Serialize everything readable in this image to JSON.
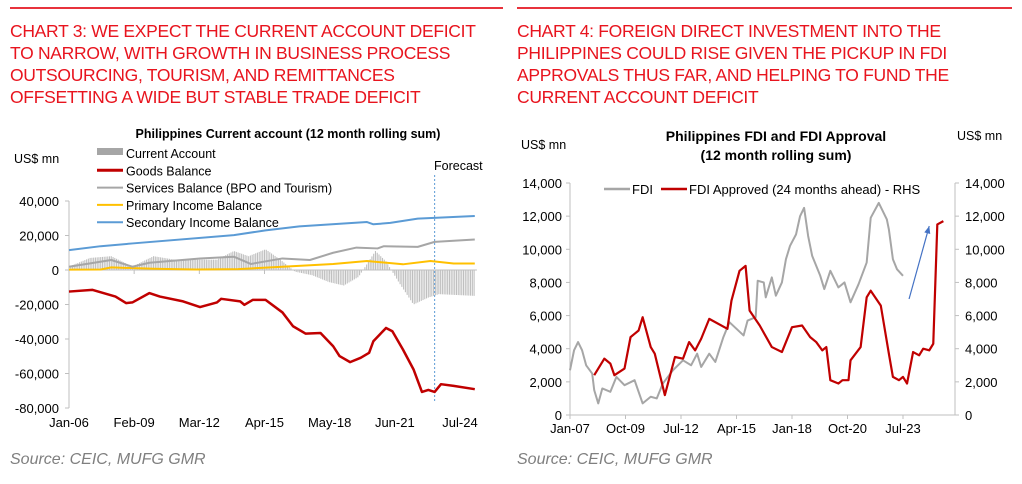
{
  "left": {
    "heading": [
      "CHART 3: WE EXPECT THE CURRENT ACCOUNT DEFICIT",
      "TO NARROW, WITH GROWTH IN BUSINESS PROCESS",
      "OUTSOURCING, TOURISM, AND REMITTANCES",
      "OFFSETTING A WIDE BUT STABLE TRADE DEFICIT"
    ],
    "source": "Source: CEIC, MUFG GMR"
  },
  "right": {
    "heading": [
      "CHART 4: FOREIGN DIRECT INVESTMENT INTO THE",
      "PHILIPPINES COULD RISE GIVEN THE PICKUP IN FDI",
      "APPROVALS THUS FAR, AND HELPING TO FUND THE",
      "CURRENT ACCOUNT DEFICIT"
    ],
    "source": "Source: CEIC, MUFG GMR"
  },
  "chart_data": [
    {
      "type": "line",
      "title": "Philippines Current account (12 month rolling sum)",
      "ylabel": "US$ mn",
      "ylim": [
        -80000,
        40000
      ],
      "yticks": [
        40000,
        20000,
        0,
        -20000,
        -40000,
        -60000,
        -80000
      ],
      "ytick_labels": [
        "40,000",
        "20,000",
        "0",
        "-20,000",
        "-40,000",
        "-60,000",
        "-80,000"
      ],
      "xlim": [
        2006.0,
        2025.3
      ],
      "xticks": [
        2006.0,
        2009.083,
        2012.167,
        2015.25,
        2018.333,
        2021.417,
        2024.5
      ],
      "xtick_labels": [
        "Jan-06",
        "Feb-09",
        "Mar-12",
        "Apr-15",
        "May-18",
        "Jun-21",
        "Jul-24"
      ],
      "annotation": {
        "text": "Forecast",
        "x": 2023.3
      },
      "legend_position": "top-left",
      "series": [
        {
          "name": "Current Account",
          "kind": "bar",
          "color": "#bfbfbf",
          "points": [
            [
              2006,
              2000
            ],
            [
              2007,
              7000
            ],
            [
              2008,
              8000
            ],
            [
              2009,
              2000
            ],
            [
              2010,
              8000
            ],
            [
              2011,
              6000
            ],
            [
              2012,
              6000
            ],
            [
              2013,
              6000
            ],
            [
              2013.8,
              11000
            ],
            [
              2014.5,
              8000
            ],
            [
              2015.3,
              12000
            ],
            [
              2016,
              6000
            ],
            [
              2016.7,
              -1000
            ],
            [
              2017.5,
              -3000
            ],
            [
              2018.3,
              -7000
            ],
            [
              2019,
              -9000
            ],
            [
              2019.7,
              -4000
            ],
            [
              2020.5,
              11000
            ],
            [
              2021,
              5000
            ],
            [
              2021.6,
              -7000
            ],
            [
              2022.3,
              -20000
            ],
            [
              2023,
              -16000
            ],
            [
              2023.5,
              -14000
            ],
            [
              2025.2,
              -15000
            ]
          ]
        },
        {
          "name": "Goods Balance",
          "kind": "line",
          "color": "#c00000",
          "points": [
            [
              2006,
              -12500
            ],
            [
              2007.1,
              -11500
            ],
            [
              2008.2,
              -15400
            ],
            [
              2008.7,
              -19200
            ],
            [
              2009,
              -18800
            ],
            [
              2009.8,
              -13400
            ],
            [
              2010.3,
              -15400
            ],
            [
              2011.4,
              -18200
            ],
            [
              2012.2,
              -21500
            ],
            [
              2013,
              -18800
            ],
            [
              2013.2,
              -16700
            ],
            [
              2014.1,
              -18200
            ],
            [
              2014.3,
              -20200
            ],
            [
              2014.7,
              -17300
            ],
            [
              2015.3,
              -17300
            ],
            [
              2016.1,
              -24600
            ],
            [
              2016.6,
              -32600
            ],
            [
              2017.2,
              -36900
            ],
            [
              2017.9,
              -36500
            ],
            [
              2018.5,
              -44200
            ],
            [
              2018.8,
              -49900
            ],
            [
              2019.3,
              -53400
            ],
            [
              2019.8,
              -50900
            ],
            [
              2020.2,
              -48000
            ],
            [
              2020.4,
              -41300
            ],
            [
              2021,
              -33600
            ],
            [
              2021.3,
              -35500
            ],
            [
              2021.8,
              -46100
            ],
            [
              2022.3,
              -57600
            ],
            [
              2022.7,
              -70700
            ],
            [
              2023,
              -69500
            ],
            [
              2023.3,
              -70700
            ],
            [
              2023.6,
              -66200
            ],
            [
              2024.2,
              -67200
            ],
            [
              2025.2,
              -69100
            ]
          ]
        },
        {
          "name": "Services Balance (BPO and Tourism)",
          "kind": "line",
          "color": "#a6a6a6",
          "points": [
            [
              2006,
              1900
            ],
            [
              2008,
              5800
            ],
            [
              2009,
              1900
            ],
            [
              2009.8,
              4200
            ],
            [
              2012.2,
              6700
            ],
            [
              2013.8,
              7700
            ],
            [
              2014.6,
              3500
            ],
            [
              2016.1,
              6700
            ],
            [
              2017.4,
              5800
            ],
            [
              2018.5,
              10000
            ],
            [
              2019.6,
              13000
            ],
            [
              2020.6,
              12500
            ],
            [
              2020.9,
              13800
            ],
            [
              2022.5,
              13400
            ],
            [
              2023.3,
              16300
            ],
            [
              2025.2,
              17700
            ]
          ]
        },
        {
          "name": "Primary Income Balance",
          "kind": "line",
          "color": "#ffc000",
          "points": [
            [
              2006,
              200
            ],
            [
              2007.5,
              300
            ],
            [
              2008,
              1500
            ],
            [
              2010,
              700
            ],
            [
              2012,
              300
            ],
            [
              2014,
              500
            ],
            [
              2016.1,
              1900
            ],
            [
              2018.5,
              3500
            ],
            [
              2020.1,
              5200
            ],
            [
              2021.8,
              3300
            ],
            [
              2023.1,
              5200
            ],
            [
              2024.2,
              3800
            ],
            [
              2025.2,
              3800
            ]
          ]
        },
        {
          "name": "Secondary Income Balance",
          "kind": "line",
          "color": "#5b9bd5",
          "points": [
            [
              2006,
              11500
            ],
            [
              2007.5,
              13800
            ],
            [
              2009,
              15400
            ],
            [
              2013.8,
              20200
            ],
            [
              2015.3,
              23000
            ],
            [
              2016.9,
              25300
            ],
            [
              2020.1,
              27800
            ],
            [
              2020.4,
              26500
            ],
            [
              2021.2,
              27300
            ],
            [
              2022.5,
              29800
            ],
            [
              2025.2,
              31300
            ]
          ]
        }
      ]
    },
    {
      "type": "line",
      "title": "Philippines FDI and FDI Approval",
      "subtitle": "(12 month rolling sum)",
      "ylabel": "US$ mn",
      "ylabel_right": "US$ mn",
      "ylim": [
        0,
        14000
      ],
      "ylim_right": [
        0,
        14000
      ],
      "yticks": [
        0,
        2000,
        4000,
        6000,
        8000,
        10000,
        12000,
        14000
      ],
      "ytick_labels": [
        "0",
        "2,000",
        "4,000",
        "6,000",
        "8,000",
        "10,000",
        "12,000",
        "14,000"
      ],
      "xlim": [
        2007.0,
        2026.0
      ],
      "xticks": [
        2007.0,
        2009.75,
        2012.5,
        2015.25,
        2018.0,
        2020.75,
        2023.5
      ],
      "xtick_labels": [
        "Jan-07",
        "Oct-09",
        "Jul-12",
        "Apr-15",
        "Jan-18",
        "Oct-20",
        "Jul-23"
      ],
      "legend_position": "top",
      "arrow": {
        "from": [
          2023.8,
          7000
        ],
        "to": [
          2024.8,
          11400
        ],
        "color": "#4472c4"
      },
      "series": [
        {
          "name": "FDI",
          "axis": "left",
          "color": "#a6a6a6",
          "points": [
            [
              2007,
              2700
            ],
            [
              2007.2,
              3900
            ],
            [
              2007.4,
              4400
            ],
            [
              2007.6,
              3900
            ],
            [
              2007.8,
              3000
            ],
            [
              2008.1,
              2500
            ],
            [
              2008.2,
              1500
            ],
            [
              2008.4,
              700
            ],
            [
              2008.6,
              1600
            ],
            [
              2009,
              1400
            ],
            [
              2009.3,
              2300
            ],
            [
              2009.7,
              1800
            ],
            [
              2010.2,
              2100
            ],
            [
              2010.6,
              700
            ],
            [
              2011,
              1100
            ],
            [
              2011.3,
              1000
            ],
            [
              2011.6,
              1900
            ],
            [
              2012.1,
              2700
            ],
            [
              2012.6,
              3300
            ],
            [
              2013,
              3000
            ],
            [
              2013.3,
              3700
            ],
            [
              2013.5,
              2900
            ],
            [
              2013.9,
              3700
            ],
            [
              2014.2,
              3200
            ],
            [
              2014.6,
              4700
            ],
            [
              2014.9,
              5600
            ],
            [
              2015.6,
              4800
            ],
            [
              2015.8,
              5700
            ],
            [
              2016.2,
              5900
            ],
            [
              2016.3,
              8100
            ],
            [
              2016.6,
              8000
            ],
            [
              2016.7,
              7100
            ],
            [
              2017,
              8300
            ],
            [
              2017.2,
              7200
            ],
            [
              2017.5,
              8000
            ],
            [
              2017.7,
              9400
            ],
            [
              2017.9,
              10200
            ],
            [
              2018.2,
              10900
            ],
            [
              2018.4,
              12000
            ],
            [
              2018.6,
              12500
            ],
            [
              2018.8,
              10800
            ],
            [
              2019,
              9600
            ],
            [
              2019.4,
              8400
            ],
            [
              2019.6,
              7600
            ],
            [
              2019.9,
              8700
            ],
            [
              2020.3,
              7700
            ],
            [
              2020.6,
              8000
            ],
            [
              2020.9,
              6800
            ],
            [
              2021.3,
              7900
            ],
            [
              2021.7,
              9200
            ],
            [
              2021.9,
              11900
            ],
            [
              2022.3,
              12800
            ],
            [
              2022.7,
              11800
            ],
            [
              2022.8,
              11200
            ],
            [
              2023,
              9400
            ],
            [
              2023.2,
              8800
            ],
            [
              2023.5,
              8400
            ]
          ]
        },
        {
          "name": "FDI Approved (24 months ahead) - RHS",
          "axis": "right",
          "color": "#c00000",
          "points": [
            [
              2008.2,
              2400
            ],
            [
              2008.7,
              3400
            ],
            [
              2009,
              3100
            ],
            [
              2009.2,
              2400
            ],
            [
              2009.7,
              2800
            ],
            [
              2010,
              4700
            ],
            [
              2010.4,
              5100
            ],
            [
              2010.6,
              5900
            ],
            [
              2011,
              4100
            ],
            [
              2011.2,
              3700
            ],
            [
              2011.7,
              1200
            ],
            [
              2012.2,
              3500
            ],
            [
              2012.6,
              3400
            ],
            [
              2012.9,
              4400
            ],
            [
              2013.2,
              3900
            ],
            [
              2013.5,
              4600
            ],
            [
              2013.9,
              5800
            ],
            [
              2014.8,
              5200
            ],
            [
              2015,
              6900
            ],
            [
              2015.4,
              8700
            ],
            [
              2015.7,
              9000
            ],
            [
              2015.9,
              6300
            ],
            [
              2016.4,
              5400
            ],
            [
              2017,
              4100
            ],
            [
              2017.5,
              3800
            ],
            [
              2018,
              5300
            ],
            [
              2018.5,
              5400
            ],
            [
              2018.9,
              4700
            ],
            [
              2019.2,
              4400
            ],
            [
              2019.5,
              3900
            ],
            [
              2019.7,
              4100
            ],
            [
              2019.9,
              2100
            ],
            [
              2020.3,
              1900
            ],
            [
              2020.5,
              2100
            ],
            [
              2020.8,
              2100
            ],
            [
              2020.9,
              3300
            ],
            [
              2021.4,
              4100
            ],
            [
              2021.7,
              7100
            ],
            [
              2021.9,
              7500
            ],
            [
              2022.4,
              6600
            ],
            [
              2022.8,
              3700
            ],
            [
              2023,
              2300
            ],
            [
              2023.3,
              2100
            ],
            [
              2023.5,
              2300
            ],
            [
              2023.7,
              1900
            ],
            [
              2024,
              3800
            ],
            [
              2024.3,
              3600
            ],
            [
              2024.5,
              4000
            ],
            [
              2024.8,
              3900
            ],
            [
              2025,
              4300
            ],
            [
              2025.2,
              11500
            ],
            [
              2025.5,
              11700
            ]
          ]
        }
      ]
    }
  ]
}
